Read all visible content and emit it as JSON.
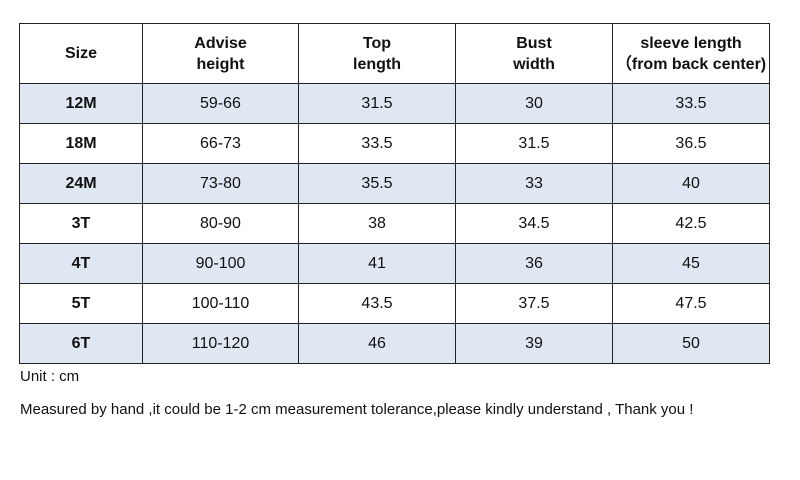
{
  "table": {
    "headers": [
      [
        "Size"
      ],
      [
        "Advise",
        "height"
      ],
      [
        "Top",
        "length"
      ],
      [
        "Bust",
        "width"
      ],
      [
        "sleeve length",
        "（from back center)"
      ]
    ],
    "rows": [
      [
        "12M",
        "59-66",
        "31.5",
        "30",
        "33.5"
      ],
      [
        "18M",
        "66-73",
        "33.5",
        "31.5",
        "36.5"
      ],
      [
        "24M",
        "73-80",
        "35.5",
        "33",
        "40"
      ],
      [
        "3T",
        "80-90",
        "38",
        "34.5",
        "42.5"
      ],
      [
        "4T",
        "90-100",
        "41",
        "36",
        "45"
      ],
      [
        "5T",
        "100-110",
        "43.5",
        "37.5",
        "47.5"
      ],
      [
        "6T",
        "110-120",
        "46",
        "39",
        "50"
      ]
    ]
  },
  "notes": {
    "unit": "Unit : cm",
    "tolerance": "Measured by hand ,it could be 1-2 cm measurement tolerance,please kindly understand , Thank you !"
  },
  "colors": {
    "row_shade": "#dfe7f2",
    "border": "#222222"
  }
}
